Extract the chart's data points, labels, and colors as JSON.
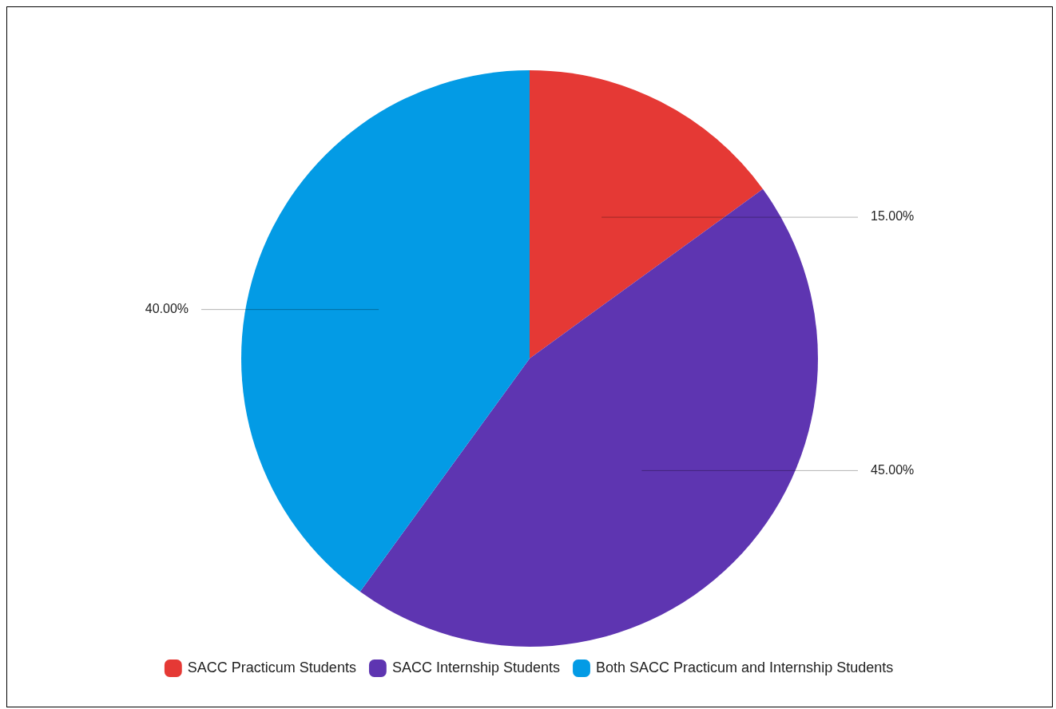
{
  "chart_data": {
    "type": "pie",
    "categories": [
      "SACC Practicum Students",
      "SACC Internship Students",
      "Both SACC Practicum and Internship Students"
    ],
    "values": [
      15,
      45,
      40
    ],
    "colors": [
      "#e53935",
      "#5e35b1",
      "#039be5"
    ],
    "value_labels": [
      "15.00%",
      "45.00%",
      "40.00%"
    ],
    "legend": "bottom"
  }
}
